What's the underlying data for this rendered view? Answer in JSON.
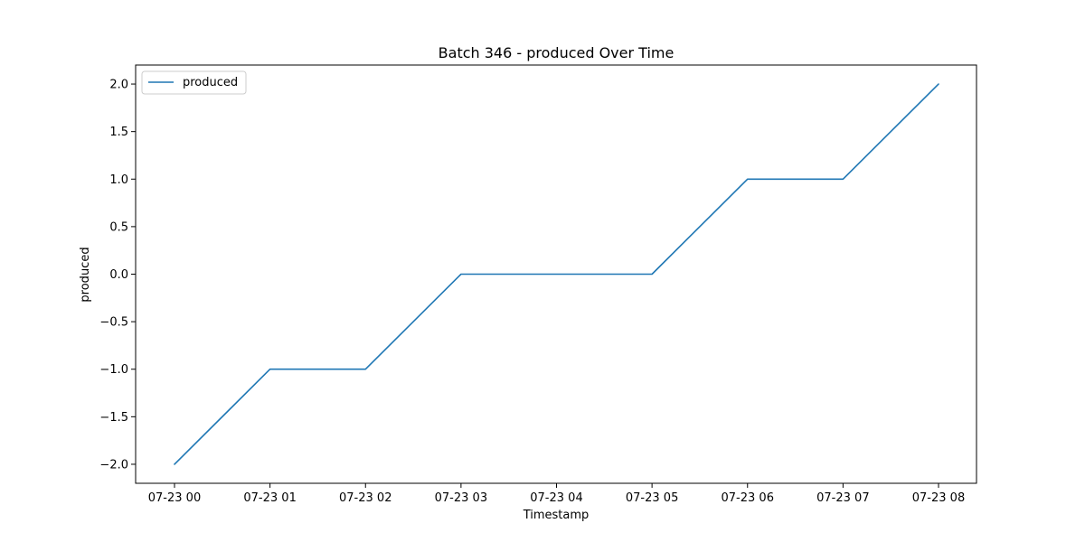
{
  "chart_data": {
    "type": "line",
    "title": "Batch 346 - produced Over Time",
    "xlabel": "Timestamp",
    "ylabel": "produced",
    "x": [
      "07-23 00",
      "07-23 01",
      "07-23 02",
      "07-23 03",
      "07-23 04",
      "07-23 05",
      "07-23 06",
      "07-23 07",
      "07-23 08"
    ],
    "series": [
      {
        "name": "produced",
        "color": "#1f77b4",
        "values": [
          -2,
          -1,
          -1,
          0,
          0,
          0,
          1,
          1,
          2
        ]
      }
    ],
    "x_ticks": [
      "07-23 00",
      "07-23 01",
      "07-23 02",
      "07-23 03",
      "07-23 04",
      "07-23 05",
      "07-23 06",
      "07-23 07",
      "07-23 08"
    ],
    "y_ticks": [
      -2.0,
      -1.5,
      -1.0,
      -0.5,
      0.0,
      0.5,
      1.0,
      1.5,
      2.0
    ],
    "y_tick_labels": [
      "−2.0",
      "−1.5",
      "−1.0",
      "−0.5",
      "0.0",
      "0.5",
      "1.0",
      "1.5",
      "2.0"
    ],
    "ylim": [
      -2.2,
      2.2
    ],
    "grid": false,
    "legend": {
      "position": "top-left",
      "entries": [
        "produced"
      ]
    }
  }
}
